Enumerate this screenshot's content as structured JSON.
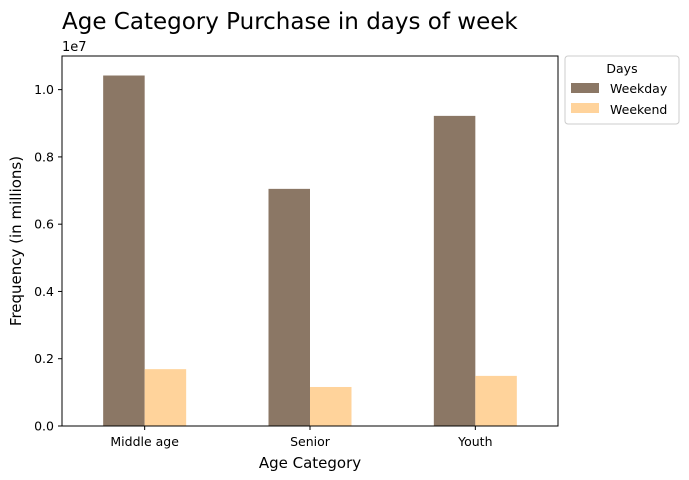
{
  "chart_data": {
    "type": "bar",
    "title": "Age Category Purchase in days of week",
    "xlabel": "Age Category",
    "ylabel": "Frequency (in millions)",
    "offset_label": "1e7",
    "categories": [
      "Middle age",
      "Senior",
      "Youth"
    ],
    "yticks": [
      0.0,
      0.2,
      0.4,
      0.6,
      0.8,
      1.0
    ],
    "ylim": [
      0,
      1.1
    ],
    "y_scale_factor": 10000000,
    "legend": {
      "title": "Days",
      "placement": "outside-top-right"
    },
    "series": [
      {
        "name": "Weekday",
        "color": "#8b7765",
        "values": [
          1.042,
          0.705,
          0.922
        ]
      },
      {
        "name": "Weekend",
        "color": "#ffd39b",
        "values": [
          0.169,
          0.116,
          0.149
        ]
      }
    ]
  }
}
